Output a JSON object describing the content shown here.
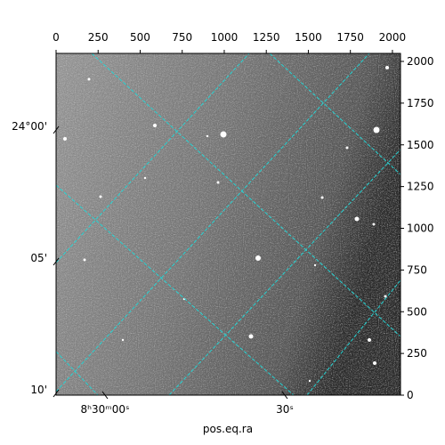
{
  "chart_data": {
    "type": "image",
    "xlabel": "pos.eq.ra",
    "xlim": [
      0,
      2048
    ],
    "xticks": [
      0,
      250,
      500,
      750,
      1000,
      1250,
      1500,
      1750,
      2000
    ],
    "ylim": [
      0,
      2048
    ],
    "yticks": [
      0,
      250,
      500,
      750,
      1000,
      1250,
      1500,
      1750,
      2000
    ],
    "ra_labels": [
      "8ʰ30ᵐ00ˢ",
      "30ˢ"
    ],
    "dec_labels": [
      "24°00'",
      "05'",
      "10'"
    ]
  }
}
